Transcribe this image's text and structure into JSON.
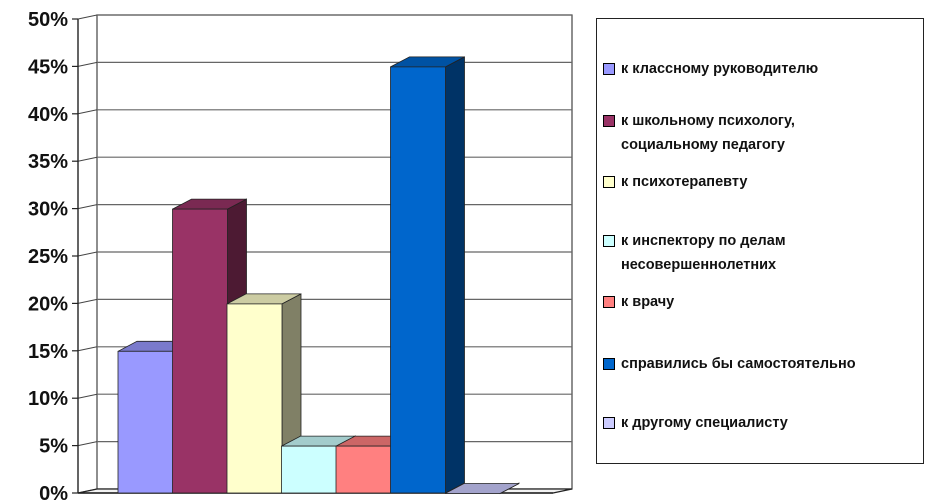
{
  "chart_data": {
    "type": "bar",
    "categories": [
      "к классному руководителю",
      "к школьному психологу, социальному педагогу",
      "к психотерапевту",
      "к инспектору по делам несовершеннолетних",
      "к врачу",
      "справились бы самостоятельно",
      "к другому специалисту"
    ],
    "values": [
      15,
      30,
      20,
      5,
      5,
      45,
      0
    ],
    "colors": [
      "#9999ff",
      "#993366",
      "#ffffcc",
      "#ccffff",
      "#ff8080",
      "#0066cc",
      "#ccccff"
    ],
    "ylim": [
      0,
      50
    ],
    "yticks": [
      "0%",
      "5%",
      "10%",
      "15%",
      "20%",
      "25%",
      "30%",
      "35%",
      "40%",
      "45%",
      "50%"
    ],
    "grid": true,
    "legend_position": "right",
    "title": "",
    "xlabel": "",
    "ylabel": ""
  },
  "legend": {
    "items": [
      {
        "label": "к классному руководителю",
        "color": "#9999ff"
      },
      {
        "label": "к школьному психологу,\nсоциальному педагогу",
        "color": "#993366"
      },
      {
        "label": "к психотерапевту",
        "color": "#ffffcc"
      },
      {
        "label": "к инспектору по делам\nнесовершеннолетних",
        "color": "#ccffff"
      },
      {
        "label": "к врачу",
        "color": "#ff8080"
      },
      {
        "label": "справились бы самостоятельно",
        "color": "#0066cc"
      },
      {
        "label": "к другому специалисту",
        "color": "#ccccff"
      }
    ]
  }
}
